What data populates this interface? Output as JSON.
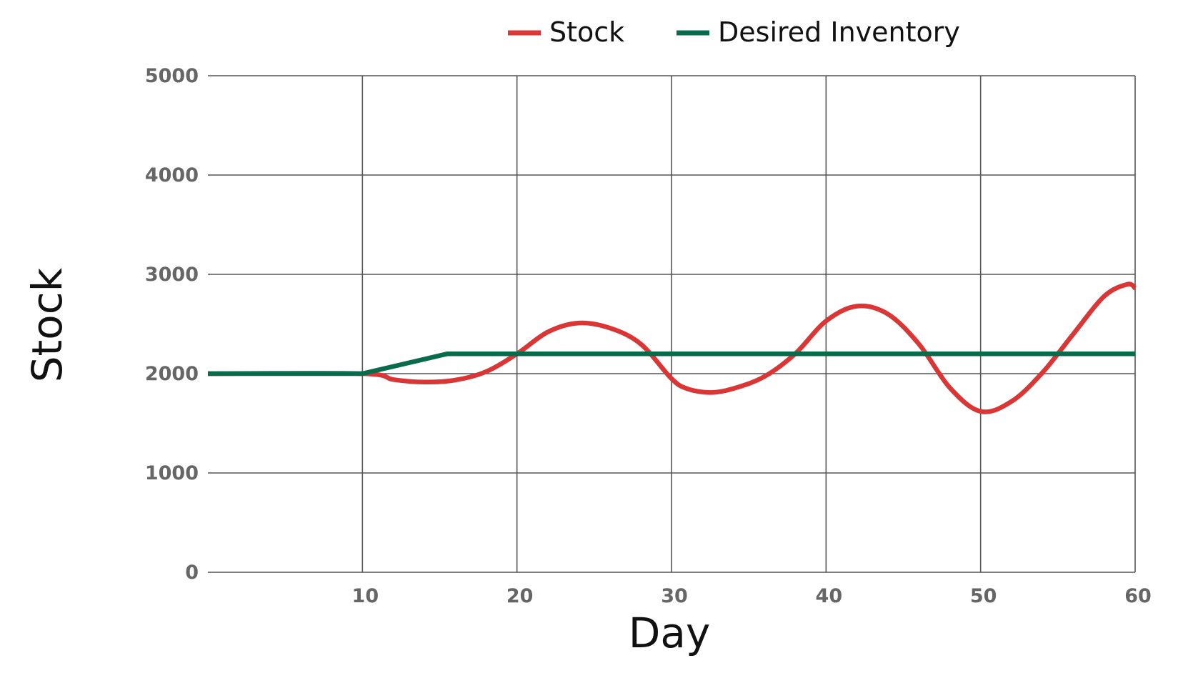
{
  "chart_data": {
    "type": "line",
    "title": "",
    "xlabel": "Day",
    "ylabel": "Stock",
    "xlim": [
      0,
      60
    ],
    "ylim": [
      0,
      5000
    ],
    "x_ticks": [
      10,
      20,
      30,
      40,
      50,
      60
    ],
    "y_ticks": [
      0,
      1000,
      2000,
      3000,
      4000,
      5000
    ],
    "grid": true,
    "legend_position": "top-center",
    "series": [
      {
        "name": "Stock",
        "color": "#d93636",
        "points": [
          [
            0,
            2000
          ],
          [
            10,
            2000
          ],
          [
            12,
            1940
          ],
          [
            14,
            1915
          ],
          [
            16,
            1935
          ],
          [
            18,
            2020
          ],
          [
            20,
            2200
          ],
          [
            22,
            2420
          ],
          [
            24,
            2510
          ],
          [
            26,
            2460
          ],
          [
            28,
            2300
          ],
          [
            30,
            1950
          ],
          [
            31,
            1850
          ],
          [
            32.5,
            1810
          ],
          [
            34,
            1850
          ],
          [
            36,
            1970
          ],
          [
            38,
            2200
          ],
          [
            40,
            2530
          ],
          [
            42,
            2680
          ],
          [
            44,
            2600
          ],
          [
            46,
            2300
          ],
          [
            48,
            1860
          ],
          [
            50,
            1620
          ],
          [
            52,
            1720
          ],
          [
            54,
            2010
          ],
          [
            56,
            2400
          ],
          [
            58,
            2780
          ],
          [
            59.5,
            2900
          ],
          [
            60,
            2860
          ]
        ]
      },
      {
        "name": "Desired Inventory",
        "color": "#0a6b4c",
        "points": [
          [
            0,
            2000
          ],
          [
            10,
            2000
          ],
          [
            15.5,
            2200
          ],
          [
            60,
            2200
          ]
        ]
      }
    ]
  }
}
